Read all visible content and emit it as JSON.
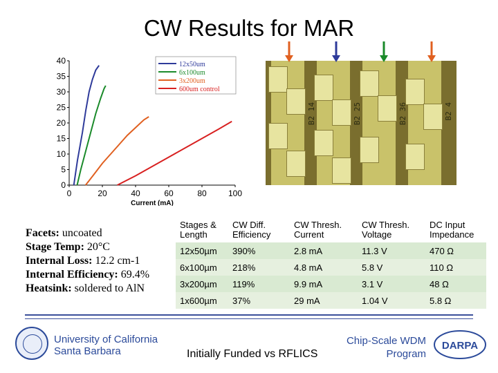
{
  "title": "CW Results for MAR",
  "chart_data": {
    "type": "line",
    "xlabel": "Current (mA)",
    "ylabel": "",
    "xlim": [
      0,
      100
    ],
    "ylim": [
      0,
      40
    ],
    "xticks": [
      "0",
      "20",
      "40",
      "60",
      "80",
      "100"
    ],
    "yticks": [
      "0",
      "5",
      "10",
      "15",
      "20",
      "25",
      "30",
      "35",
      "40"
    ],
    "legend_position": "top-right",
    "series": [
      {
        "name": "12x50um",
        "color": "#2e3a9a",
        "x": [
          2.8,
          5,
          8,
          10,
          12,
          14,
          16,
          18
        ],
        "y": [
          0,
          8,
          17,
          24,
          30,
          34,
          37,
          38.5
        ]
      },
      {
        "name": "6x100um",
        "color": "#1a8a2a",
        "x": [
          4.8,
          7,
          10,
          13,
          16,
          19,
          21,
          22
        ],
        "y": [
          0,
          5,
          11,
          17,
          23,
          28,
          31,
          32
        ]
      },
      {
        "name": "3x200um",
        "color": "#e06020",
        "x": [
          9.9,
          15,
          20,
          25,
          30,
          35,
          40,
          45,
          48
        ],
        "y": [
          0,
          3.5,
          7,
          10,
          13,
          16,
          18.5,
          21,
          22
        ]
      },
      {
        "name": "600um control",
        "color": "#d82020",
        "x": [
          29,
          40,
          50,
          60,
          70,
          80,
          90,
          98
        ],
        "y": [
          0,
          3,
          6,
          9,
          12,
          15,
          18,
          20.5
        ]
      }
    ]
  },
  "photo": {
    "labels": [
      "B2 14",
      "B2 25",
      "B2 36",
      "B2 4"
    ],
    "arrow_colors": [
      "#e06020",
      "#2e3a9a",
      "#1a8a2a",
      "#e06020"
    ]
  },
  "specs": [
    {
      "label": "Facets:",
      "value": " uncoated"
    },
    {
      "label": "Stage Temp:",
      "value": " 20°C"
    },
    {
      "label": "Internal Loss:",
      "value": " 12.2 cm-1"
    },
    {
      "label": "Internal Efficiency:",
      "value": " 69.4%"
    },
    {
      "label": "Heatsink:",
      "value": " soldered to AlN"
    }
  ],
  "table": {
    "headers": [
      "Stages & Length",
      "CW Diff. Efficiency",
      "CW Thresh. Current",
      "CW Thresh. Voltage",
      "DC Input Impedance"
    ],
    "rows": [
      [
        "12x50µm",
        "390%",
        "2.8 mA",
        "11.3 V",
        "470 Ω"
      ],
      [
        "6x100µm",
        "218%",
        "4.8 mA",
        "5.8 V",
        "110 Ω"
      ],
      [
        "3x200µm",
        "119%",
        "9.9 mA",
        "3.1 V",
        "48 Ω"
      ],
      [
        "1x600µm",
        "37%",
        "29 mA",
        "1.04 V",
        "5.8 Ω"
      ]
    ]
  },
  "footer": {
    "university_line1": "University of California",
    "university_line2": "Santa Barbara",
    "funded": "Initially Funded vs RFLICS",
    "program_line1": "Chip-Scale WDM",
    "program_line2": "Program",
    "darpa": "DARPA"
  },
  "colors": {
    "accent_blue": "#2b4a9a"
  }
}
